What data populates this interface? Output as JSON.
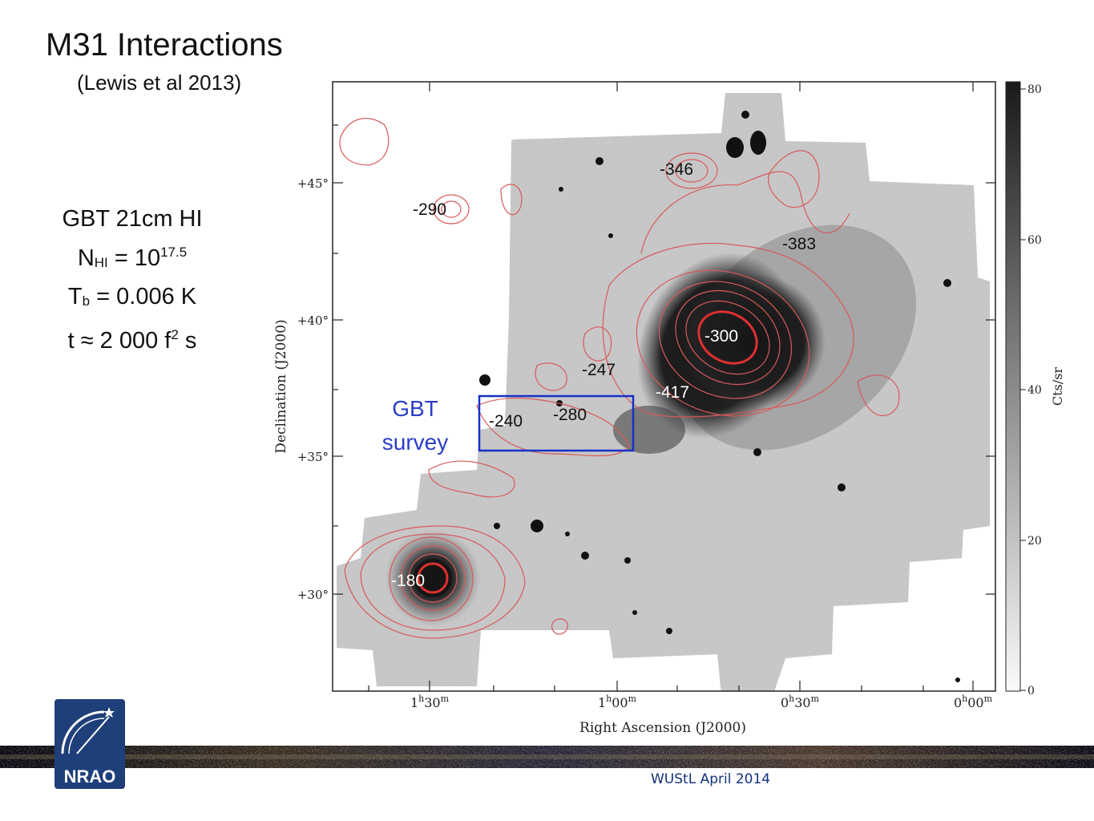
{
  "slide": {
    "title": "M31 Interactions",
    "subtitle": "(Lewis et al 2013)",
    "info": {
      "line1": "GBT 21cm HI",
      "nhi_symbol": "N",
      "nhi_sub": "HI",
      "nhi_eq": " = 10",
      "nhi_exp": "17.5",
      "tb_symbol": "T",
      "tb_sub": "b",
      "tb_eq": " = 0.006 K",
      "t_prefix": "t ≈ 2 000 f",
      "t_exp": "2",
      "t_suffix": " s"
    },
    "footer": "WUStL April 2014",
    "logo_text": "NRAO"
  },
  "figure": {
    "y_axis_label": "Declination (J2000)",
    "x_axis_label": "Right Ascension (J2000)",
    "y_ticks": [
      "+45°",
      "+40°",
      "+35°",
      "+30°"
    ],
    "x_ticks": [
      {
        "hour": "1",
        "min": "30"
      },
      {
        "hour": "1",
        "min": "00"
      },
      {
        "hour": "0",
        "min": "30"
      },
      {
        "hour": "0",
        "min": "00"
      }
    ],
    "colorbar_label": "Cts/sr",
    "colorbar_ticks": [
      "80",
      "60",
      "40",
      "20",
      "0"
    ],
    "velocity_labels": [
      "-346",
      "-290",
      "-383",
      "-300",
      "-247",
      "-417",
      "-240",
      "-280",
      "-180"
    ],
    "survey_box_label_1": "GBT",
    "survey_box_label_2": "survey",
    "colors": {
      "contour": "#d85a5a",
      "survey_box": "#1530c8",
      "survey_text": "#2a3ec8",
      "footer_text": "#14327a"
    }
  }
}
